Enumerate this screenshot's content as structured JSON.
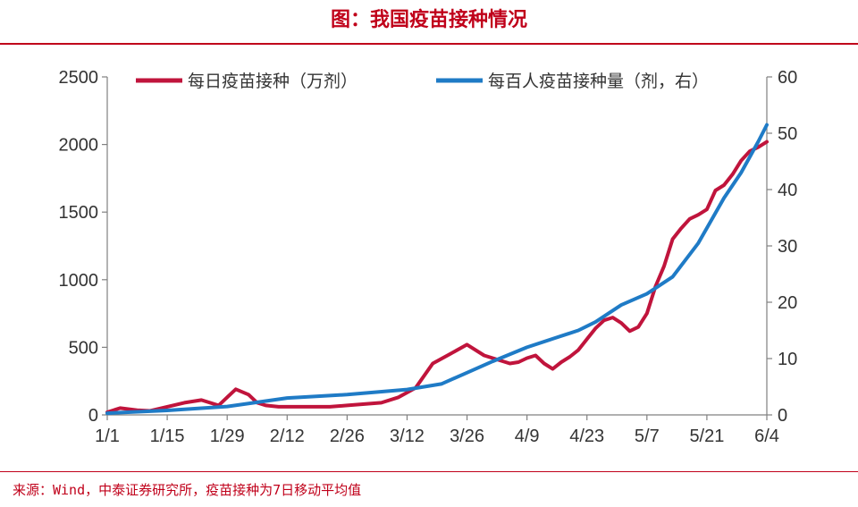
{
  "header": {
    "title": "图：我国疫苗接种情况"
  },
  "footer": {
    "source": "来源：Wind，中泰证券研究所，疫苗接种为7日移动平均值"
  },
  "colors": {
    "accent": "#c0001a",
    "daily": "#c0143c",
    "per100": "#1f7bc6",
    "axis": "#808080"
  },
  "chart_data": {
    "type": "line",
    "x_ticks": [
      "1/1",
      "1/15",
      "1/29",
      "2/12",
      "2/26",
      "3/12",
      "3/26",
      "4/9",
      "4/23",
      "5/7",
      "5/21",
      "6/4"
    ],
    "x_range": [
      0,
      154
    ],
    "y_left": {
      "min": 0,
      "max": 2500,
      "ticks": [
        0,
        500,
        1000,
        1500,
        2000,
        2500
      ]
    },
    "y_right": {
      "min": 0,
      "max": 60,
      "ticks": [
        0,
        10,
        20,
        30,
        40,
        50,
        60
      ]
    },
    "legend_position": "top",
    "grid": false,
    "series": [
      {
        "name": "每日疫苗接种（万剂）",
        "axis": "left",
        "x": [
          0,
          3,
          7,
          10,
          14,
          18,
          22,
          26,
          28,
          30,
          33,
          35,
          37,
          40,
          44,
          48,
          52,
          56,
          60,
          64,
          68,
          72,
          76,
          80,
          84,
          88,
          92,
          94,
          96,
          98,
          100,
          102,
          104,
          106,
          108,
          110,
          112,
          114,
          116,
          118,
          120,
          122,
          124,
          126,
          128,
          130,
          132,
          134,
          136,
          138,
          140,
          142,
          144,
          146,
          148,
          150,
          152,
          154
        ],
        "values": [
          20,
          50,
          35,
          30,
          60,
          90,
          110,
          70,
          130,
          190,
          150,
          90,
          70,
          60,
          60,
          60,
          60,
          70,
          80,
          90,
          130,
          200,
          380,
          450,
          520,
          440,
          400,
          380,
          390,
          420,
          440,
          380,
          340,
          390,
          430,
          480,
          560,
          640,
          700,
          720,
          680,
          620,
          650,
          750,
          950,
          1100,
          1300,
          1380,
          1450,
          1480,
          1520,
          1660,
          1700,
          1780,
          1880,
          1950,
          1980,
          2020
        ]
      },
      {
        "name": "每百人疫苗接种量（剂，右）",
        "axis": "right",
        "x": [
          0,
          14,
          28,
          42,
          56,
          70,
          78,
          84,
          90,
          98,
          104,
          110,
          114,
          120,
          126,
          132,
          138,
          144,
          148,
          152,
          154
        ],
        "values": [
          0.3,
          0.8,
          1.5,
          3.0,
          3.6,
          4.5,
          5.5,
          7.5,
          9.5,
          12.0,
          13.5,
          15.0,
          16.5,
          19.5,
          21.5,
          24.5,
          30.5,
          38.5,
          43.0,
          48.5,
          51.5
        ]
      }
    ]
  }
}
